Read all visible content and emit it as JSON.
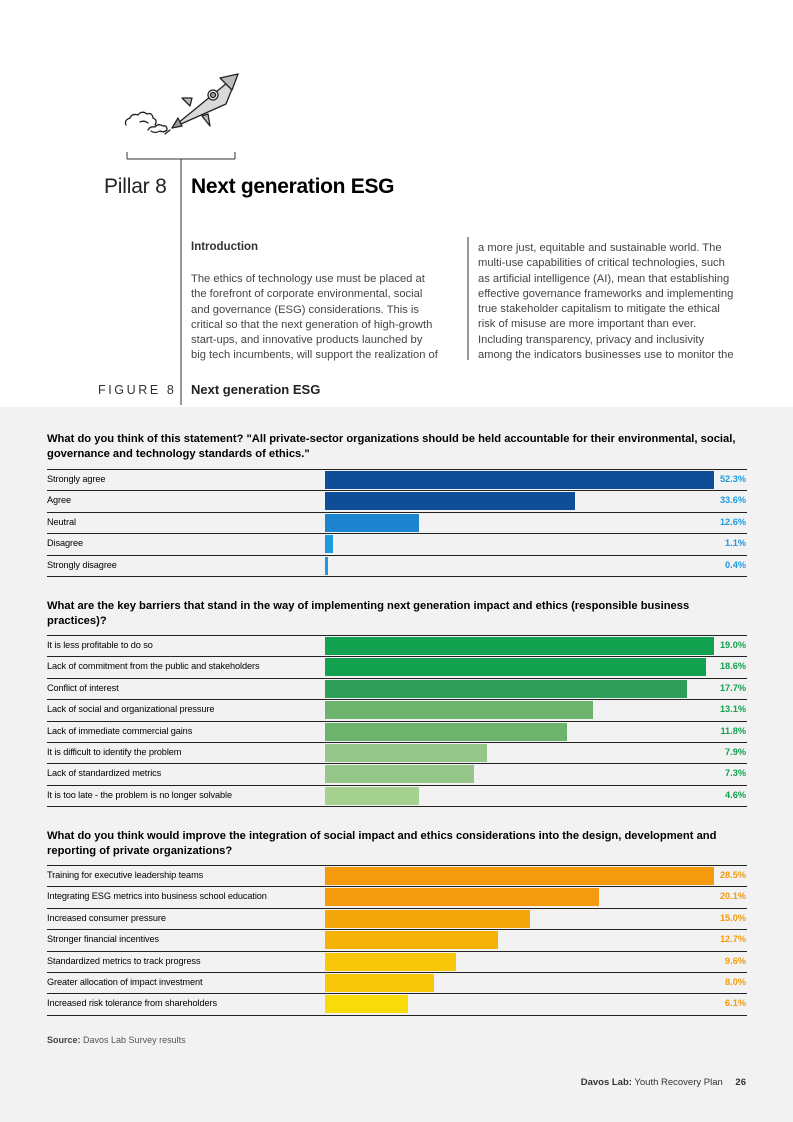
{
  "header": {
    "pillar_label": "Pillar 8",
    "pillar_title": "Next generation ESG"
  },
  "intro": {
    "heading": "Introduction",
    "col1_lines": [
      "The ethics of technology use must be placed at",
      "the forefront of corporate environmental, social",
      "and governance (ESG) considerations. This is",
      "critical so that the next generation of high-growth",
      "start-ups, and innovative products launched by",
      "big tech incumbents, will support the realization of"
    ],
    "col2_lines": [
      "a more just, equitable and sustainable world. The",
      "multi-use capabilities of critical technologies, such",
      "as artificial intelligence (AI), mean that establishing",
      "effective governance frameworks and implementing",
      "true stakeholder capitalism to mitigate the ethical",
      "risk of misuse are more important than ever.",
      "Including transparency, privacy and inclusivity",
      "among the indicators businesses use to monitor the"
    ]
  },
  "figure": {
    "label": "FIGURE 8",
    "title": "Next generation ESG"
  },
  "chart_data": [
    {
      "type": "bar",
      "orientation": "horizontal",
      "title": "What do you think of this statement? \"All private-sector organizations should be held accountable for their environmental, social, governance and technology standards of ethics.\"",
      "categories": [
        "Strongly agree",
        "Agree",
        "Neutral",
        "Disagree",
        "Strongly disagree"
      ],
      "values": [
        52.3,
        33.6,
        12.6,
        1.1,
        0.4
      ],
      "value_labels": [
        "52.3%",
        "33.6%",
        "12.6%",
        "1.1%",
        "0.4%"
      ],
      "colors": [
        "#0f4d96",
        "#0f4d96",
        "#1d84cf",
        "#1d9ae0",
        "#1d9ae0"
      ],
      "label_color": "#1d9ae0",
      "unit": "%"
    },
    {
      "type": "bar",
      "orientation": "horizontal",
      "title": "What are the key barriers that stand in the way of implementing next generation impact and ethics (responsible business practices)?",
      "categories": [
        "It is less profitable to do so",
        "Lack of commitment from the public and stakeholders",
        "Conflict of interest",
        "Lack of social and organizational pressure",
        "Lack of immediate commercial gains",
        "It is difficult to identify the problem",
        "Lack of standardized metrics",
        "It is too late - the problem is no longer solvable"
      ],
      "values": [
        19.0,
        18.6,
        17.7,
        13.1,
        11.8,
        7.9,
        7.3,
        4.6
      ],
      "value_labels": [
        "19.0%",
        "18.6%",
        "17.7%",
        "13.1%",
        "11.8%",
        "7.9%",
        "7.3%",
        "4.6%"
      ],
      "colors": [
        "#12a14e",
        "#12a14e",
        "#2e9e5a",
        "#6cb46e",
        "#6cb46e",
        "#96c78a",
        "#96c78a",
        "#a4d18f"
      ],
      "label_color": "#12a14e",
      "unit": "%"
    },
    {
      "type": "bar",
      "orientation": "horizontal",
      "title": "What do you think would improve the integration of social impact and ethics considerations into the design, development and reporting of private organizations?",
      "categories": [
        "Training for executive leadership teams",
        "Integrating ESG metrics into business school education",
        "Increased consumer pressure",
        "Stronger financial incentives",
        "Standardized metrics to track progress",
        "Greater allocation of impact investment",
        "Increased risk tolerance from shareholders"
      ],
      "values": [
        28.5,
        20.1,
        15.0,
        12.7,
        9.6,
        8.0,
        6.1
      ],
      "value_labels": [
        "28.5%",
        "20.1%",
        "15.0%",
        "12.7%",
        "9.6%",
        "8.0%",
        "6.1%"
      ],
      "colors": [
        "#f39a0e",
        "#f39a0e",
        "#f5a60a",
        "#f5b10a",
        "#f8c70a",
        "#f8c70a",
        "#f8dc0a"
      ],
      "label_color": "#f39a0e",
      "unit": "%"
    }
  ],
  "source": {
    "label": "Source:",
    "text": "Davos Lab Survey results"
  },
  "footer": {
    "report_bold": "Davos Lab:",
    "report_rest": "Youth Recovery Plan",
    "page_number": "26"
  }
}
